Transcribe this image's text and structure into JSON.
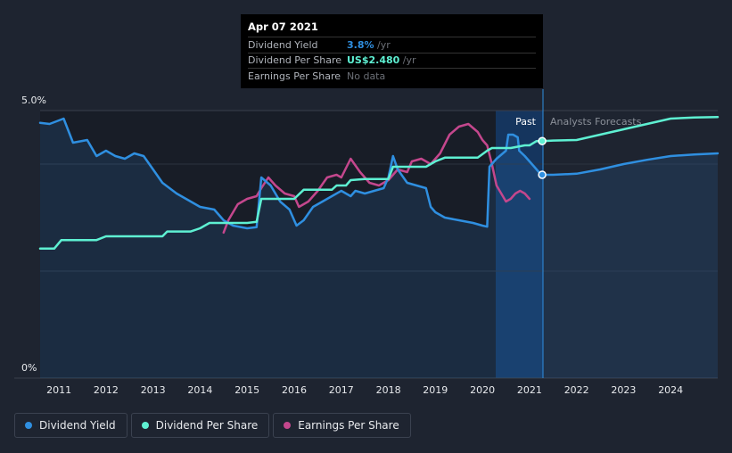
{
  "tooltip": {
    "date": "Apr 07 2021",
    "rows": [
      {
        "label": "Dividend Yield",
        "value": "3.8%",
        "suffix": " /yr",
        "color": "#2f8fe0"
      },
      {
        "label": "Dividend Per Share",
        "value": "US$2.480",
        "suffix": " /yr",
        "color": "#5ef0d2"
      },
      {
        "label": "Earnings Per Share",
        "value": "No data",
        "suffix": "",
        "color": "#6b6f76"
      }
    ]
  },
  "regions": {
    "past": "Past",
    "forecast": "Analysts Forecasts"
  },
  "legend": [
    {
      "label": "Dividend Yield",
      "color": "#2f8fe0"
    },
    {
      "label": "Dividend Per Share",
      "color": "#5ef0d2"
    },
    {
      "label": "Earnings Per Share",
      "color": "#c4478d"
    }
  ],
  "chart_data": {
    "type": "line",
    "y_tick_labels": [
      "5.0%",
      "0%"
    ],
    "ylim": [
      0,
      5.0
    ],
    "xlim": [
      2010.6,
      2025.0
    ],
    "x_tick_labels": [
      "2011",
      "2012",
      "2013",
      "2014",
      "2015",
      "2016",
      "2017",
      "2018",
      "2019",
      "2020",
      "2021",
      "2022",
      "2023",
      "2024"
    ],
    "grid": true,
    "cursor_x": 2021.27,
    "series": [
      {
        "name": "Dividend Yield",
        "color": "#2f8fe0",
        "points": [
          [
            2010.6,
            4.77
          ],
          [
            2010.8,
            4.75
          ],
          [
            2010.95,
            4.8
          ],
          [
            2011.1,
            4.85
          ],
          [
            2011.3,
            4.4
          ],
          [
            2011.6,
            4.45
          ],
          [
            2011.8,
            4.15
          ],
          [
            2012.0,
            4.25
          ],
          [
            2012.2,
            4.15
          ],
          [
            2012.4,
            4.1
          ],
          [
            2012.6,
            4.2
          ],
          [
            2012.8,
            4.15
          ],
          [
            2013.0,
            3.9
          ],
          [
            2013.2,
            3.65
          ],
          [
            2013.5,
            3.45
          ],
          [
            2013.8,
            3.3
          ],
          [
            2014.0,
            3.2
          ],
          [
            2014.3,
            3.15
          ],
          [
            2014.5,
            2.95
          ],
          [
            2014.7,
            2.85
          ],
          [
            2015.0,
            2.8
          ],
          [
            2015.2,
            2.82
          ],
          [
            2015.3,
            3.75
          ],
          [
            2015.5,
            3.6
          ],
          [
            2015.7,
            3.3
          ],
          [
            2015.9,
            3.15
          ],
          [
            2016.05,
            2.85
          ],
          [
            2016.2,
            2.95
          ],
          [
            2016.4,
            3.2
          ],
          [
            2016.6,
            3.3
          ],
          [
            2016.8,
            3.4
          ],
          [
            2017.0,
            3.5
          ],
          [
            2017.2,
            3.4
          ],
          [
            2017.3,
            3.5
          ],
          [
            2017.5,
            3.45
          ],
          [
            2017.7,
            3.5
          ],
          [
            2017.9,
            3.55
          ],
          [
            2018.0,
            3.75
          ],
          [
            2018.1,
            4.15
          ],
          [
            2018.2,
            3.9
          ],
          [
            2018.4,
            3.65
          ],
          [
            2018.6,
            3.6
          ],
          [
            2018.8,
            3.55
          ],
          [
            2018.9,
            3.2
          ],
          [
            2019.0,
            3.1
          ],
          [
            2019.2,
            3.0
          ],
          [
            2019.5,
            2.95
          ],
          [
            2019.8,
            2.9
          ],
          [
            2020.0,
            2.85
          ],
          [
            2020.1,
            2.83
          ],
          [
            2020.15,
            3.95
          ],
          [
            2020.3,
            4.1
          ],
          [
            2020.5,
            4.25
          ],
          [
            2020.55,
            4.55
          ],
          [
            2020.65,
            4.55
          ],
          [
            2020.75,
            4.5
          ],
          [
            2020.78,
            4.25
          ],
          [
            2020.9,
            4.15
          ],
          [
            2021.0,
            4.05
          ],
          [
            2021.1,
            3.95
          ],
          [
            2021.2,
            3.85
          ],
          [
            2021.27,
            3.8
          ],
          [
            2021.5,
            3.8
          ],
          [
            2022.0,
            3.82
          ],
          [
            2022.5,
            3.9
          ],
          [
            2023.0,
            4.0
          ],
          [
            2023.5,
            4.08
          ],
          [
            2024.0,
            4.15
          ],
          [
            2024.5,
            4.18
          ],
          [
            2025.0,
            4.2
          ]
        ]
      },
      {
        "name": "Dividend Per Share",
        "color": "#5ef0d2",
        "points": [
          [
            2010.6,
            2.42
          ],
          [
            2010.9,
            2.42
          ],
          [
            2011.05,
            2.58
          ],
          [
            2011.4,
            2.58
          ],
          [
            2011.8,
            2.58
          ],
          [
            2012.0,
            2.65
          ],
          [
            2012.5,
            2.65
          ],
          [
            2013.0,
            2.65
          ],
          [
            2013.2,
            2.65
          ],
          [
            2013.3,
            2.74
          ],
          [
            2013.8,
            2.74
          ],
          [
            2014.0,
            2.8
          ],
          [
            2014.2,
            2.9
          ],
          [
            2014.5,
            2.9
          ],
          [
            2015.0,
            2.9
          ],
          [
            2015.2,
            2.92
          ],
          [
            2015.3,
            3.35
          ],
          [
            2015.7,
            3.35
          ],
          [
            2016.0,
            3.35
          ],
          [
            2016.2,
            3.52
          ],
          [
            2016.5,
            3.52
          ],
          [
            2016.8,
            3.52
          ],
          [
            2016.9,
            3.6
          ],
          [
            2017.1,
            3.6
          ],
          [
            2017.2,
            3.7
          ],
          [
            2017.5,
            3.72
          ],
          [
            2018.0,
            3.72
          ],
          [
            2018.1,
            3.95
          ],
          [
            2018.4,
            3.95
          ],
          [
            2018.8,
            3.95
          ],
          [
            2019.0,
            4.05
          ],
          [
            2019.2,
            4.12
          ],
          [
            2019.6,
            4.12
          ],
          [
            2019.9,
            4.12
          ],
          [
            2020.1,
            4.25
          ],
          [
            2020.2,
            4.3
          ],
          [
            2020.6,
            4.3
          ],
          [
            2020.9,
            4.35
          ],
          [
            2021.0,
            4.35
          ],
          [
            2021.15,
            4.43
          ],
          [
            2021.27,
            4.43
          ],
          [
            2021.5,
            4.44
          ],
          [
            2022.0,
            4.45
          ],
          [
            2022.5,
            4.55
          ],
          [
            2023.0,
            4.65
          ],
          [
            2023.5,
            4.75
          ],
          [
            2024.0,
            4.85
          ],
          [
            2024.5,
            4.87
          ],
          [
            2025.0,
            4.88
          ]
        ]
      },
      {
        "name": "Earnings Per Share",
        "color": "#c4478d",
        "points": [
          [
            2014.5,
            2.72
          ],
          [
            2014.6,
            2.95
          ],
          [
            2014.8,
            3.25
          ],
          [
            2015.0,
            3.35
          ],
          [
            2015.2,
            3.4
          ],
          [
            2015.3,
            3.55
          ],
          [
            2015.45,
            3.75
          ],
          [
            2015.6,
            3.6
          ],
          [
            2015.8,
            3.45
          ],
          [
            2016.0,
            3.4
          ],
          [
            2016.1,
            3.2
          ],
          [
            2016.3,
            3.3
          ],
          [
            2016.5,
            3.5
          ],
          [
            2016.7,
            3.75
          ],
          [
            2016.9,
            3.8
          ],
          [
            2017.0,
            3.75
          ],
          [
            2017.2,
            4.1
          ],
          [
            2017.4,
            3.85
          ],
          [
            2017.6,
            3.65
          ],
          [
            2017.8,
            3.6
          ],
          [
            2018.0,
            3.7
          ],
          [
            2018.2,
            3.9
          ],
          [
            2018.4,
            3.85
          ],
          [
            2018.5,
            4.05
          ],
          [
            2018.7,
            4.1
          ],
          [
            2018.9,
            4.0
          ],
          [
            2019.1,
            4.2
          ],
          [
            2019.3,
            4.55
          ],
          [
            2019.5,
            4.7
          ],
          [
            2019.7,
            4.75
          ],
          [
            2019.9,
            4.6
          ],
          [
            2020.0,
            4.45
          ],
          [
            2020.1,
            4.35
          ],
          [
            2020.2,
            4.0
          ],
          [
            2020.3,
            3.6
          ],
          [
            2020.4,
            3.45
          ],
          [
            2020.5,
            3.3
          ],
          [
            2020.6,
            3.35
          ],
          [
            2020.7,
            3.45
          ],
          [
            2020.8,
            3.5
          ],
          [
            2020.9,
            3.45
          ],
          [
            2021.0,
            3.35
          ]
        ]
      }
    ]
  }
}
